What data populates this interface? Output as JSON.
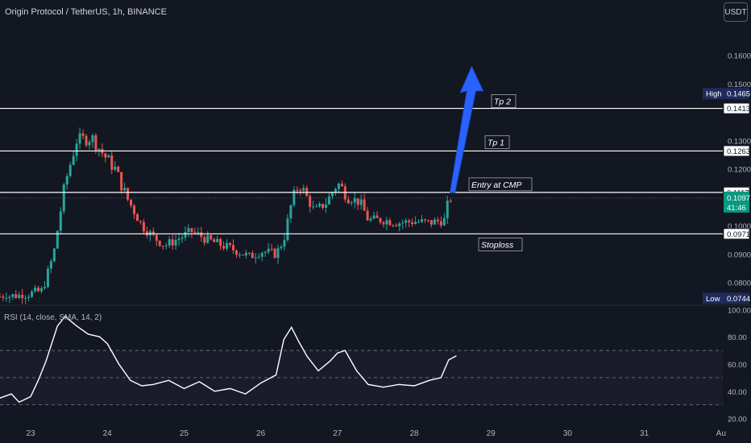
{
  "header": {
    "title": "Origin Protocol / TetherUS, 1h, BINANCE",
    "currency_button": "USDT"
  },
  "rsi_panel": {
    "label": "RSI (14, close, SMA, 14, 2)",
    "upper_band": 70,
    "lower_band": 30,
    "mid_band": 50
  },
  "chart_data": [
    {
      "type": "candlestick",
      "title": "Origin Protocol / TetherUS, 1h, BINANCE",
      "y_ticks": [
        "0.1600",
        "0.1500",
        "0.1300",
        "0.1200",
        "0.1000",
        "0.0900",
        "0.0800"
      ],
      "x_ticks": [
        "23",
        "24",
        "25",
        "26",
        "27",
        "28",
        "29",
        "30",
        "31",
        "Au"
      ],
      "ylim": [
        0.0725,
        0.1775
      ],
      "price_path": [
        [
          22.6,
          0.075
        ],
        [
          22.9,
          0.0755
        ],
        [
          23.15,
          0.077
        ],
        [
          23.3,
          0.09
        ],
        [
          23.45,
          0.115
        ],
        [
          23.6,
          0.13
        ],
        [
          23.8,
          0.131
        ],
        [
          23.95,
          0.125
        ],
        [
          24.1,
          0.12
        ],
        [
          24.25,
          0.11
        ],
        [
          24.45,
          0.1
        ],
        [
          24.6,
          0.096
        ],
        [
          24.75,
          0.093
        ],
        [
          24.9,
          0.095
        ],
        [
          25.1,
          0.098
        ],
        [
          25.3,
          0.095
        ],
        [
          25.5,
          0.093
        ],
        [
          25.7,
          0.091
        ],
        [
          25.85,
          0.089
        ],
        [
          26.0,
          0.091
        ],
        [
          26.2,
          0.09
        ],
        [
          26.3,
          0.095
        ],
        [
          26.4,
          0.108
        ],
        [
          26.5,
          0.115
        ],
        [
          26.7,
          0.105
        ],
        [
          26.85,
          0.108
        ],
        [
          27.0,
          0.115
        ],
        [
          27.15,
          0.11
        ],
        [
          27.3,
          0.108
        ],
        [
          27.4,
          0.102
        ],
        [
          27.6,
          0.102
        ],
        [
          27.8,
          0.101
        ],
        [
          28.0,
          0.1015
        ],
        [
          28.2,
          0.101
        ],
        [
          28.4,
          0.102
        ],
        [
          28.45,
          0.1097
        ]
      ],
      "horizontal_levels": [
        {
          "label": "Tp 2",
          "value": 0.1413
        },
        {
          "label": "Tp 1",
          "value": 0.1263
        },
        {
          "label": "Entry at CMP",
          "value": 0.1117
        },
        {
          "label": "Stoploss",
          "value": 0.0971
        }
      ],
      "price_tags": [
        {
          "text": "0.1413"
        },
        {
          "text": "0.1263"
        },
        {
          "text": "0.1117"
        },
        {
          "text": "0.0971"
        }
      ],
      "current_price": {
        "value": "0.1097",
        "countdown": "41:46"
      },
      "high": {
        "label": "High",
        "value": "0.1465"
      },
      "low": {
        "label": "Low",
        "value": "0.0744"
      },
      "projection_arrow": {
        "from": [
          28.5,
          0.1117
        ],
        "to": [
          28.75,
          0.156
        ]
      }
    },
    {
      "type": "line",
      "title": "RSI (14, close, SMA, 14, 2)",
      "y_ticks": [
        "100.00",
        "80.00",
        "60.00",
        "40.00",
        "20.00"
      ],
      "ylim": [
        15,
        102
      ],
      "points": [
        [
          22.6,
          35
        ],
        [
          22.75,
          38
        ],
        [
          22.85,
          32
        ],
        [
          23.0,
          36
        ],
        [
          23.1,
          48
        ],
        [
          23.2,
          62
        ],
        [
          23.35,
          88
        ],
        [
          23.45,
          95
        ],
        [
          23.6,
          88
        ],
        [
          23.75,
          82
        ],
        [
          23.9,
          80
        ],
        [
          24.0,
          75
        ],
        [
          24.15,
          60
        ],
        [
          24.3,
          48
        ],
        [
          24.45,
          44
        ],
        [
          24.6,
          45
        ],
        [
          24.8,
          48
        ],
        [
          25.0,
          42
        ],
        [
          25.2,
          47
        ],
        [
          25.4,
          40
        ],
        [
          25.6,
          42
        ],
        [
          25.8,
          38
        ],
        [
          26.0,
          46
        ],
        [
          26.2,
          52
        ],
        [
          26.3,
          78
        ],
        [
          26.4,
          87
        ],
        [
          26.5,
          76
        ],
        [
          26.6,
          66
        ],
        [
          26.75,
          55
        ],
        [
          26.9,
          62
        ],
        [
          27.0,
          68
        ],
        [
          27.1,
          70
        ],
        [
          27.25,
          55
        ],
        [
          27.4,
          45
        ],
        [
          27.6,
          43
        ],
        [
          27.8,
          45
        ],
        [
          28.0,
          44
        ],
        [
          28.2,
          48
        ],
        [
          28.35,
          50
        ],
        [
          28.45,
          63
        ],
        [
          28.55,
          66
        ]
      ],
      "bands": [
        70,
        50,
        30
      ]
    }
  ]
}
